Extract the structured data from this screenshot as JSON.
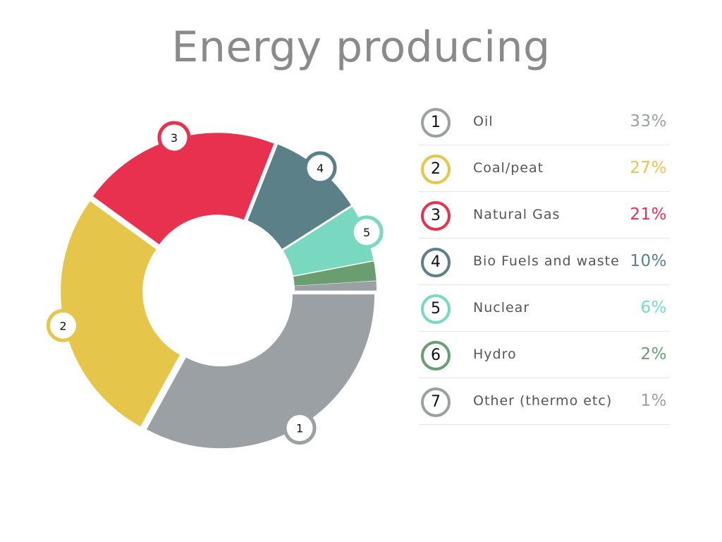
{
  "title": "Energy producing",
  "chart_data": {
    "type": "pie",
    "variant": "donut",
    "title": "Energy producing",
    "categories": [
      "Oil",
      "Coal/peat",
      "Natural Gas",
      "Bio Fuels and waste",
      "Nuclear",
      "Hydro",
      "Other (thermo etc)"
    ],
    "numbers": [
      "1",
      "2",
      "3",
      "4",
      "5",
      "6",
      "7"
    ],
    "values": [
      33,
      27,
      21,
      10,
      6,
      2,
      1
    ],
    "value_labels": [
      "33%",
      "27%",
      "21%",
      "10%",
      "6%",
      "2%",
      "1%"
    ],
    "colors": [
      "#9aa0a4",
      "#e5c64a",
      "#e8304f",
      "#5b8088",
      "#78d8c0",
      "#6a9d70",
      "#9aa0a4"
    ],
    "slice_markers": [
      "1",
      "2",
      "3",
      "4",
      "5"
    ],
    "legend": "right"
  }
}
